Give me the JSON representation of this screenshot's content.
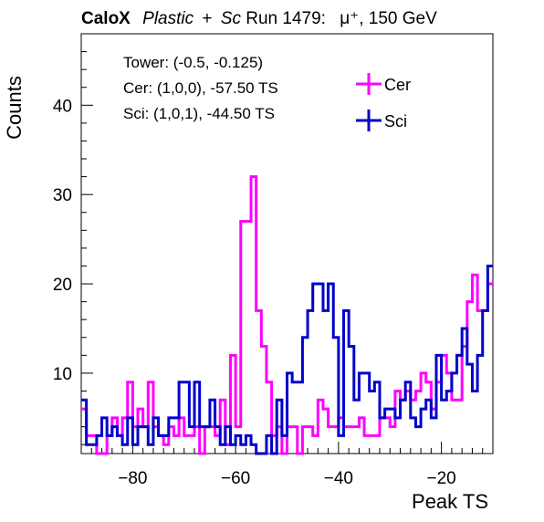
{
  "header": {
    "brand": "CaloX",
    "material": "Plastic",
    "plus": "+",
    "material2": "Sc",
    "run": "Run 1479:",
    "particle": "μ⁺, 150 GeV"
  },
  "info": {
    "line1": "Tower: (-0.5, -0.125)",
    "line2": "Cer: (1,0,0), -57.50 TS",
    "line3": "Sci: (1,0,1), -44.50 TS"
  },
  "colors": {
    "cer": "#ff00ff",
    "sci": "#0000cc"
  },
  "chart_data": {
    "type": "step-histogram",
    "xlabel": "Peak TS",
    "ylabel": "Counts",
    "xlim": [
      -90,
      -10
    ],
    "ylim": [
      1,
      48
    ],
    "bin_width": 1,
    "xticks": [
      -80,
      -60,
      -40,
      -20
    ],
    "yticks": [
      10,
      20,
      30,
      40
    ],
    "legend_position": "top-right",
    "series": [
      {
        "name": "Cer",
        "color": "#ff00ff",
        "x": [
          -90,
          -89,
          -88,
          -87,
          -86,
          -85,
          -84,
          -83,
          -82,
          -81,
          -80,
          -79,
          -78,
          -77,
          -76,
          -75,
          -74,
          -73,
          -72,
          -71,
          -70,
          -69,
          -68,
          -67,
          -66,
          -65,
          -64,
          -63,
          -62,
          -61,
          -60,
          -59,
          -58,
          -57,
          -56,
          -55,
          -54,
          -53,
          -52,
          -51,
          -50,
          -49,
          -48,
          -47,
          -46,
          -45,
          -44,
          -43,
          -42,
          -41,
          -40,
          -39,
          -38,
          -37,
          -36,
          -35,
          -34,
          -33,
          -32,
          -31,
          -30,
          -29,
          -28,
          -27,
          -26,
          -25,
          -24,
          -23,
          -22,
          -21,
          -20,
          -19,
          -18,
          -17,
          -16,
          -15,
          -14,
          -13,
          -12,
          -11
        ],
        "y": [
          6,
          3,
          3,
          1,
          1,
          3,
          5,
          3,
          5,
          9,
          4,
          6,
          4,
          9,
          4,
          3,
          2,
          4,
          3,
          5,
          3,
          3,
          4,
          1,
          4,
          4,
          3,
          7,
          2,
          12,
          4,
          27,
          27,
          32,
          17,
          13,
          9,
          3,
          4,
          1,
          4,
          4,
          1,
          4,
          4,
          3,
          7,
          6,
          4,
          4,
          5,
          4,
          4,
          4,
          5,
          3,
          3,
          3,
          5,
          5,
          4,
          8,
          7,
          8,
          7,
          8,
          10,
          9,
          6,
          9,
          12,
          10,
          7,
          7,
          13,
          18,
          21,
          17,
          17,
          20
        ]
      },
      {
        "name": "Sci",
        "color": "#0000cc",
        "x": [
          -90,
          -89,
          -88,
          -87,
          -86,
          -85,
          -84,
          -83,
          -82,
          -81,
          -80,
          -79,
          -78,
          -77,
          -76,
          -75,
          -74,
          -73,
          -72,
          -71,
          -70,
          -69,
          -68,
          -67,
          -66,
          -65,
          -64,
          -63,
          -62,
          -61,
          -60,
          -59,
          -58,
          -57,
          -56,
          -55,
          -54,
          -53,
          -52,
          -51,
          -50,
          -49,
          -48,
          -47,
          -46,
          -45,
          -44,
          -43,
          -42,
          -41,
          -40,
          -39,
          -38,
          -37,
          -36,
          -35,
          -34,
          -33,
          -32,
          -31,
          -30,
          -29,
          -28,
          -27,
          -26,
          -25,
          -24,
          -23,
          -22,
          -21,
          -20,
          -19,
          -18,
          -17,
          -16,
          -15,
          -14,
          -13,
          -12,
          -11
        ],
        "y": [
          7,
          2,
          2,
          3,
          5,
          3,
          4,
          3,
          2,
          5,
          2,
          4,
          4,
          2,
          5,
          3,
          3,
          5,
          5,
          9,
          9,
          4,
          9,
          4,
          4,
          7,
          4,
          2,
          4,
          2,
          3,
          2,
          3,
          2,
          1,
          1,
          3,
          1,
          7,
          3,
          10,
          9,
          9,
          14,
          17,
          20,
          20,
          17,
          20,
          14,
          3,
          17,
          13,
          7,
          10,
          10,
          8,
          9,
          5,
          6,
          6,
          5,
          7,
          9,
          5,
          4,
          6,
          7,
          5,
          12,
          7,
          8,
          10,
          12,
          15,
          11,
          8,
          12,
          17,
          22
        ]
      }
    ]
  }
}
